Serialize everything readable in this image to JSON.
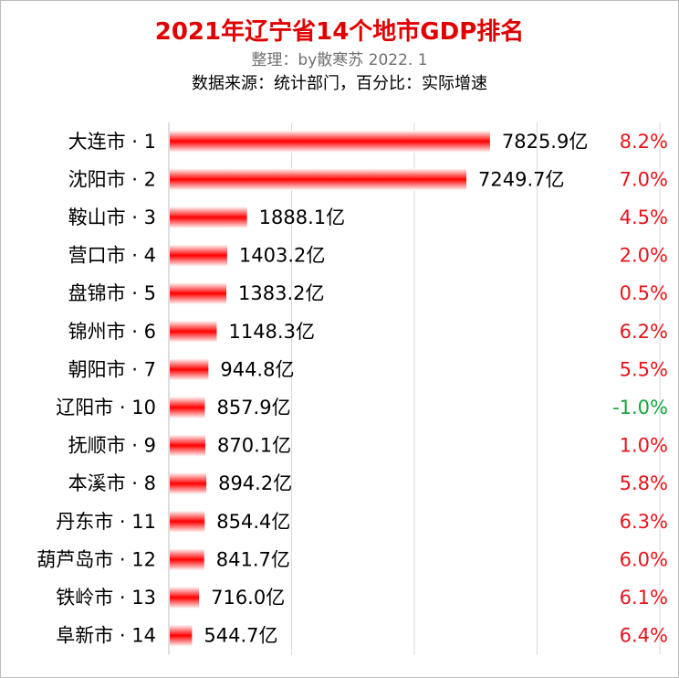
{
  "title": "2021年辽宁省14个地市GDP排名",
  "subtitle1": "整理：by散寒苏 2022. 1",
  "subtitle2": "数据来源：统计部门，百分比：实际增速",
  "colors": {
    "title": "#e10000",
    "bar": "#ff0000",
    "positive_growth": "#e8141b",
    "negative_growth": "#12a83b",
    "grid": "#d9d9d9"
  },
  "chart_data": {
    "type": "bar",
    "orientation": "horizontal",
    "categories": [
      "大连市 · 1",
      "沈阳市 · 2",
      "鞍山市 · 3",
      "营口市 · 4",
      "盘锦市 · 5",
      "锦州市 · 6",
      "朝阳市 · 7",
      "辽阳市 · 10",
      "抚顺市 · 9",
      "本溪市 · 8",
      "丹东市 · 11",
      "葫芦岛市 · 12",
      "铁岭市 · 13",
      "阜新市 · 14"
    ],
    "values": [
      7825.9,
      7249.7,
      1888.1,
      1403.2,
      1383.2,
      1148.3,
      944.8,
      857.9,
      870.1,
      894.2,
      854.4,
      841.7,
      716.0,
      544.7
    ],
    "value_labels": [
      "7825.9亿",
      "7249.7亿",
      "1888.1亿",
      "1403.2亿",
      "1383.2亿",
      "1148.3亿",
      "944.8亿",
      "857.9亿",
      "870.1亿",
      "894.2亿",
      "854.4亿",
      "841.7亿",
      "716.0亿",
      "544.7亿"
    ],
    "growth_labels": [
      "8.2%",
      "7.0%",
      "4.5%",
      "2.0%",
      "0.5%",
      "6.2%",
      "5.5%",
      "-1.0%",
      "1.0%",
      "5.8%",
      "6.3%",
      "6.0%",
      "6.1%",
      "6.4%"
    ],
    "growth_values": [
      8.2,
      7.0,
      4.5,
      2.0,
      0.5,
      6.2,
      5.5,
      -1.0,
      1.0,
      5.8,
      6.3,
      6.0,
      6.1,
      6.4
    ],
    "xlim": [
      0,
      12000
    ],
    "grid": true,
    "gridline_values": [
      3000,
      6000,
      9000,
      12000
    ],
    "xlabel": "",
    "ylabel": ""
  }
}
